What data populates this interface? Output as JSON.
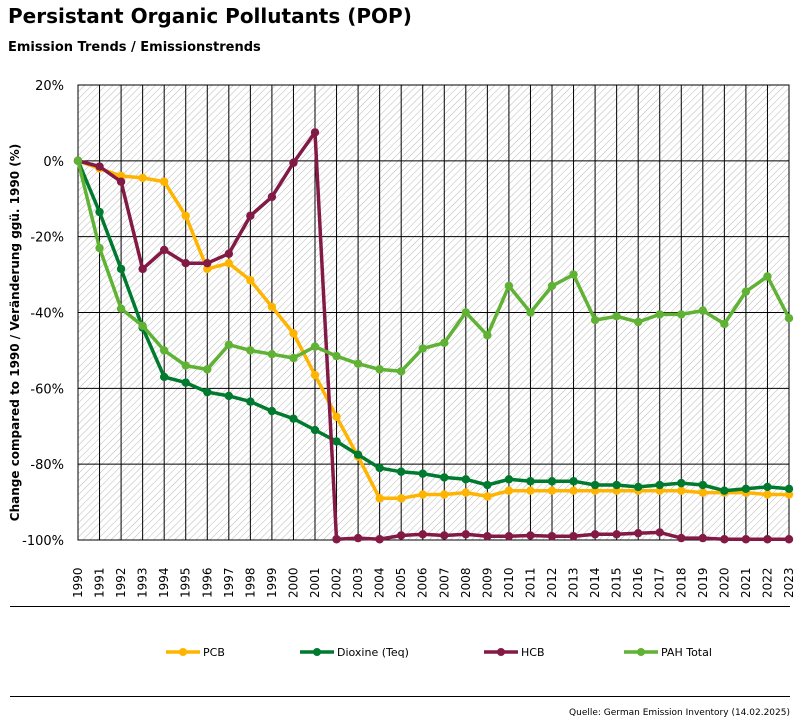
{
  "header": {
    "title": "Persistant Organic Pollutants (POP)",
    "subtitle": "Emission Trends / Emissionstrends"
  },
  "source": "Quelle: German Emission Inventory (14.02.2025)",
  "colors": {
    "pcb": "#ffb400",
    "dioxine": "#007a2e",
    "hcb": "#831a45",
    "pah": "#5fb233"
  },
  "chart_data": {
    "type": "line",
    "title": "Persistant Organic Pollutants (POP)",
    "subtitle": "Emission Trends / Emissionstrends",
    "xlabel": "",
    "ylabel": "Change compared to 1990 / Veränderung ggü. 1990 (%)",
    "ylim": [
      -100,
      20
    ],
    "yticks": [
      20,
      0,
      -20,
      -40,
      -60,
      -80,
      -100
    ],
    "ytick_labels": [
      "20%",
      "0%",
      "-20%",
      "-40%",
      "-60%",
      "-80%",
      "-100%"
    ],
    "legend_position": "bottom",
    "categories": [
      "1990",
      "1991",
      "1992",
      "1993",
      "1994",
      "1995",
      "1996",
      "1997",
      "1998",
      "1999",
      "2000",
      "2001",
      "2002",
      "2003",
      "2004",
      "2005",
      "2006",
      "2007",
      "2008",
      "2009",
      "2010",
      "2011",
      "2012",
      "2013",
      "2014",
      "2015",
      "2016",
      "2017",
      "2018",
      "2019",
      "2020",
      "2021",
      "2022",
      "2023"
    ],
    "series": [
      {
        "name": "PCB",
        "color": "#ffb400",
        "values": [
          0,
          -2,
          -4,
          -4.5,
          -5.5,
          -14.5,
          -28.5,
          -27,
          -31.5,
          -38.5,
          -45.5,
          -56.5,
          -67.5,
          -78,
          -89,
          -89,
          -88,
          -88,
          -87.5,
          -88.5,
          -87,
          -87,
          -87,
          -87,
          -87,
          -87,
          -87,
          -87,
          -87,
          -87.5,
          -87.5,
          -87.5,
          -88,
          -88
        ]
      },
      {
        "name": "Dioxine (Teq)",
        "color": "#007a2e",
        "values": [
          0,
          -13.5,
          -28.5,
          -44,
          -57,
          -58.5,
          -61,
          -62,
          -63.5,
          -66,
          -68,
          -71,
          -74,
          -77.5,
          -81,
          -82,
          -82.5,
          -83.5,
          -84,
          -85.5,
          -84,
          -84.5,
          -84.5,
          -84.5,
          -85.5,
          -85.5,
          -86,
          -85.5,
          -85,
          -85.5,
          -87,
          -86.5,
          -86,
          -86.5
        ]
      },
      {
        "name": "HCB",
        "color": "#831a45",
        "values": [
          0,
          -1.5,
          -5.5,
          -28.5,
          -23.5,
          -27,
          -27,
          -24.5,
          -14.5,
          -9.5,
          -0.5,
          7.5,
          -99.8,
          -99.5,
          -99.8,
          -98.8,
          -98.5,
          -98.8,
          -98.5,
          -99,
          -99,
          -98.8,
          -99,
          -99,
          -98.5,
          -98.5,
          -98.2,
          -98,
          -99.5,
          -99.5,
          -99.8,
          -99.8,
          -99.8,
          -99.8
        ]
      },
      {
        "name": "PAH Total",
        "color": "#5fb233",
        "values": [
          0,
          -23,
          -39,
          -43.5,
          -50,
          -54,
          -55,
          -48.5,
          -50,
          -51,
          -52,
          -49,
          -51.5,
          -53.5,
          -55,
          -55.5,
          -49.5,
          -48,
          -40,
          -46,
          -33,
          -40,
          -33,
          -30,
          -42,
          -41,
          -42.5,
          -40.5,
          -40.5,
          -39.5,
          -43,
          -34.5,
          -30.5,
          -41.5
        ]
      }
    ]
  }
}
